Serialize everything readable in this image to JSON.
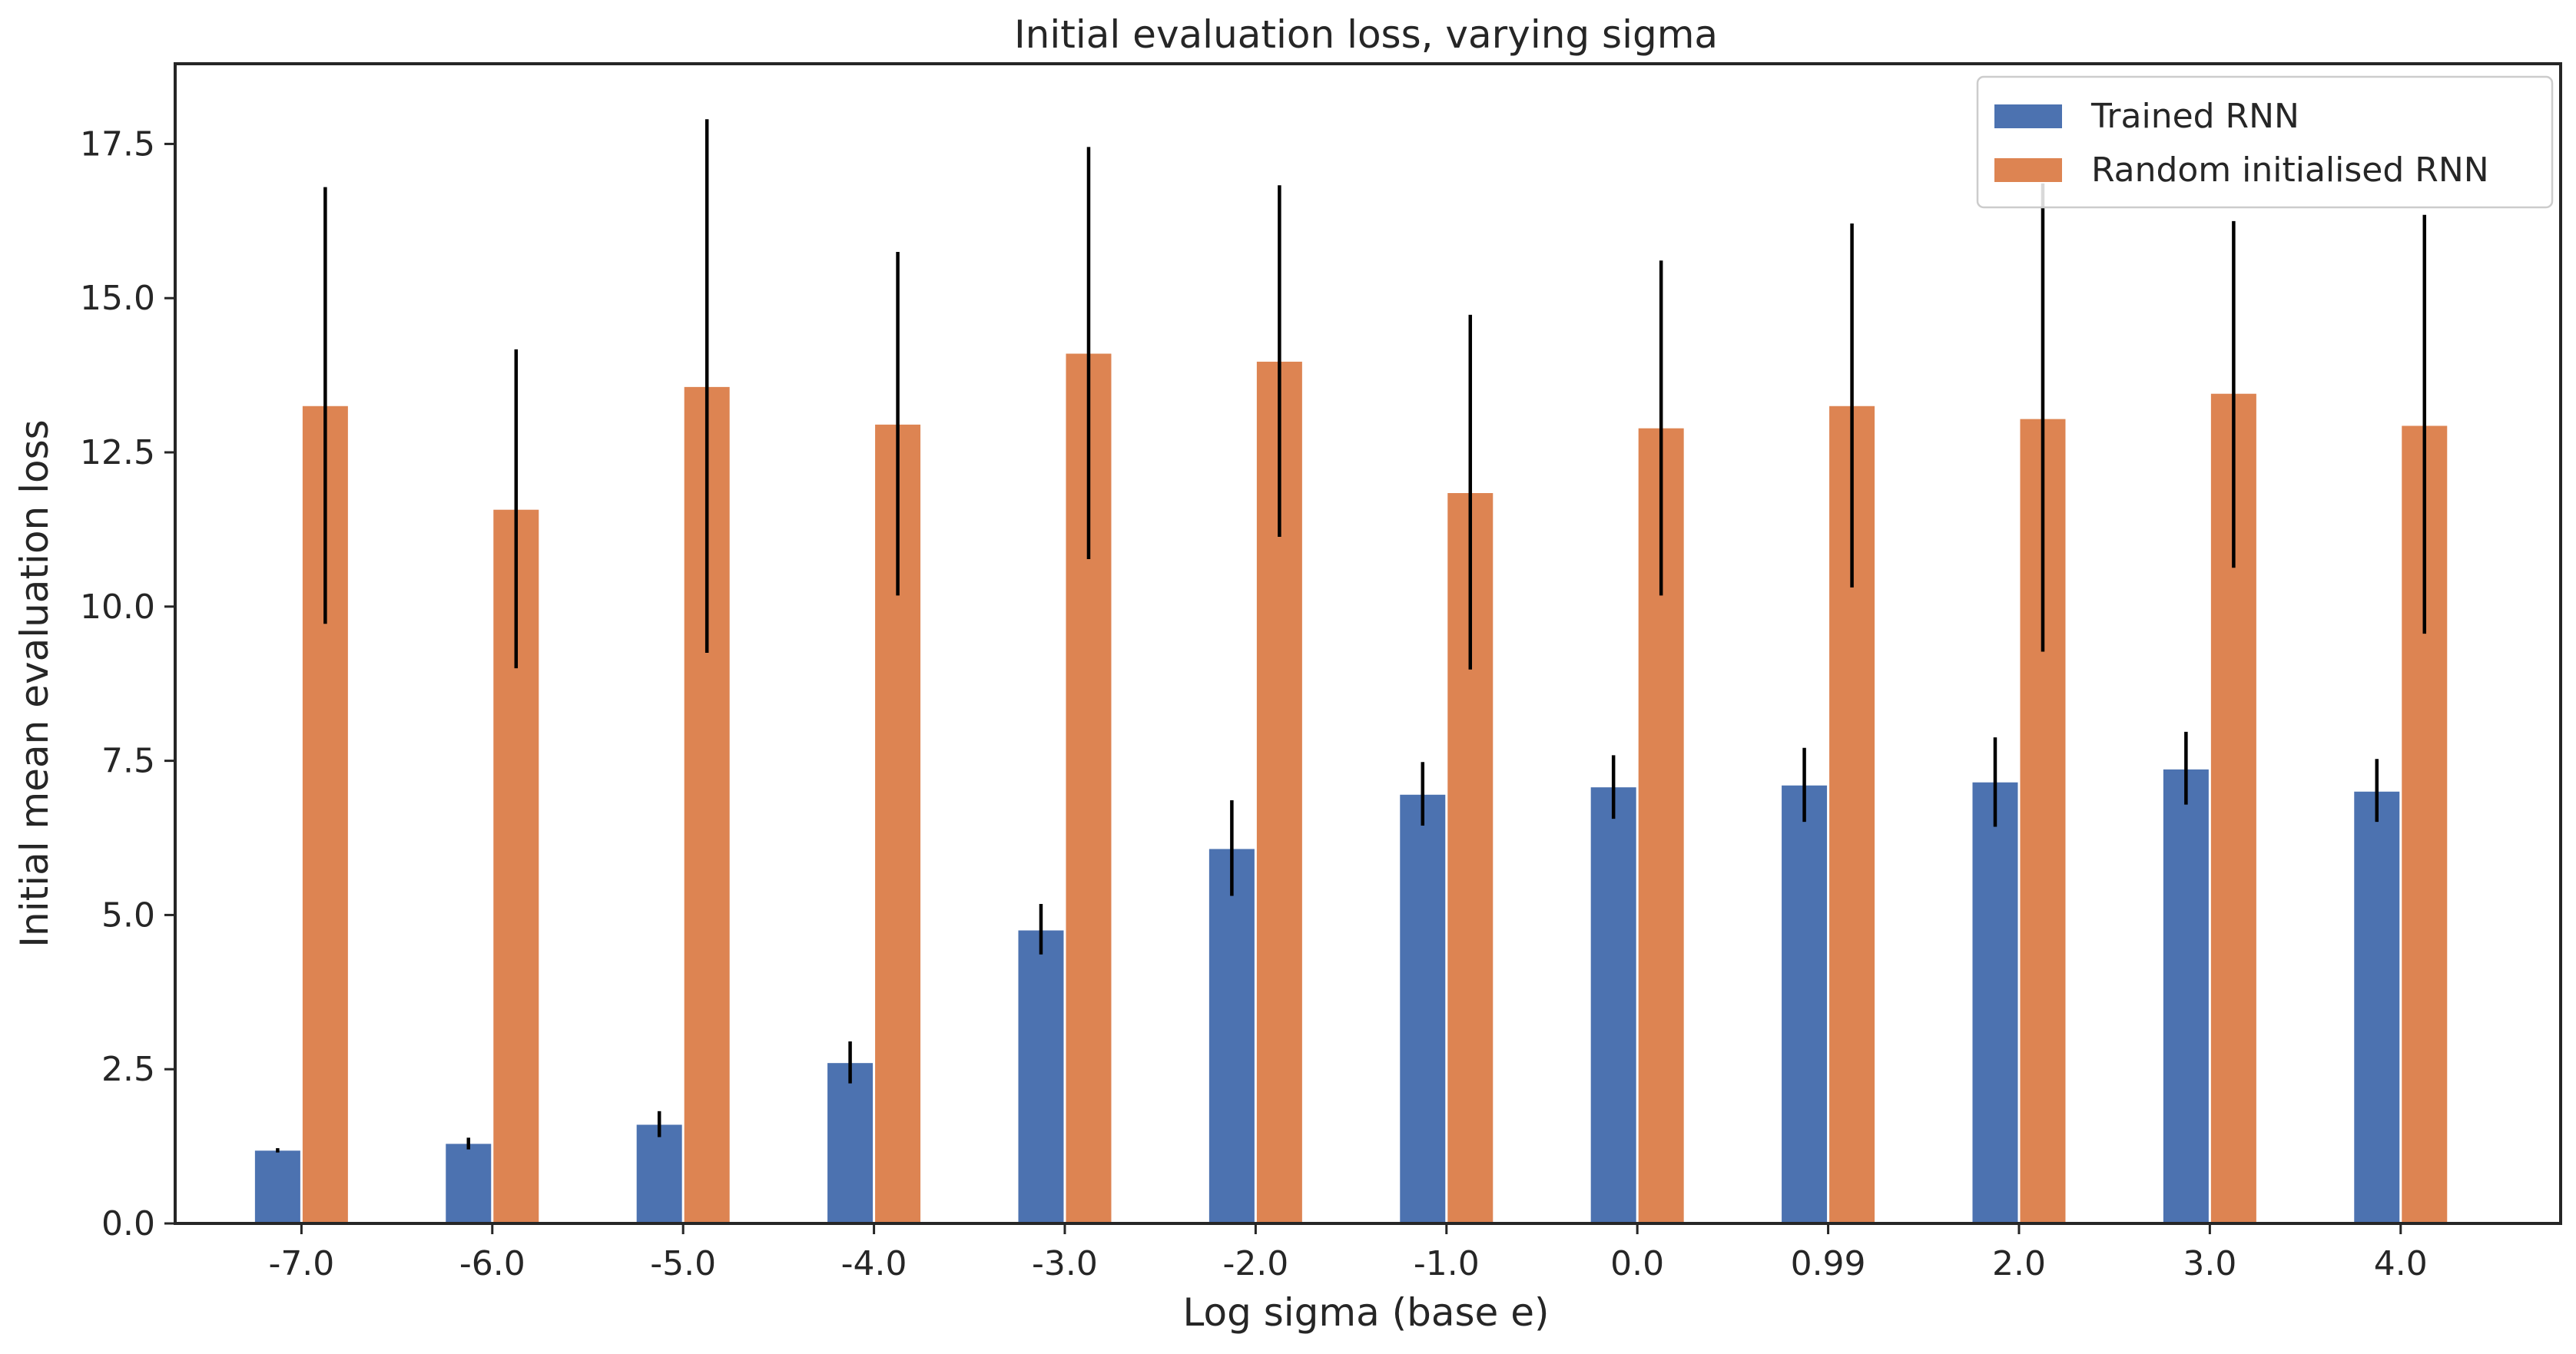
{
  "chart_data": {
    "type": "bar",
    "title": "Initial evaluation loss, varying sigma",
    "xlabel": "Log sigma (base e)",
    "ylabel": "Initial mean evaluation loss",
    "categories": [
      "-7.0",
      "-6.0",
      "-5.0",
      "-4.0",
      "-3.0",
      "-2.0",
      "-1.0",
      "0.0",
      "0.99",
      "2.0",
      "3.0",
      "4.0"
    ],
    "ylim": [
      0,
      18.8
    ],
    "yticks": [
      "0.0",
      "2.5",
      "5.0",
      "7.5",
      "10.0",
      "12.5",
      "15.0",
      "17.5"
    ],
    "grid": false,
    "legend_position": "top-right",
    "series": [
      {
        "name": "Trained RNN",
        "color": "#4c72b0",
        "values": [
          1.18,
          1.29,
          1.6,
          2.6,
          4.75,
          6.07,
          6.95,
          7.07,
          7.1,
          7.15,
          7.36,
          7.0
        ],
        "error_low": [
          1.15,
          1.2,
          1.4,
          2.27,
          4.36,
          5.31,
          6.45,
          6.56,
          6.51,
          6.43,
          6.79,
          6.51
        ],
        "error_high": [
          1.22,
          1.39,
          1.82,
          2.95,
          5.18,
          6.86,
          7.48,
          7.59,
          7.71,
          7.88,
          7.97,
          7.53
        ]
      },
      {
        "name": "Random initialised RNN",
        "color": "#dd8452",
        "values": [
          13.25,
          11.57,
          13.56,
          12.95,
          14.1,
          13.97,
          11.84,
          12.89,
          13.25,
          13.04,
          13.45,
          12.93
        ],
        "error_low": [
          9.72,
          9.0,
          9.25,
          10.18,
          10.77,
          11.13,
          8.98,
          10.18,
          10.31,
          9.27,
          10.63,
          9.56
        ],
        "error_high": [
          16.8,
          14.17,
          17.9,
          15.75,
          17.45,
          16.83,
          14.73,
          15.61,
          16.21,
          16.86,
          16.25,
          16.35
        ]
      }
    ]
  }
}
